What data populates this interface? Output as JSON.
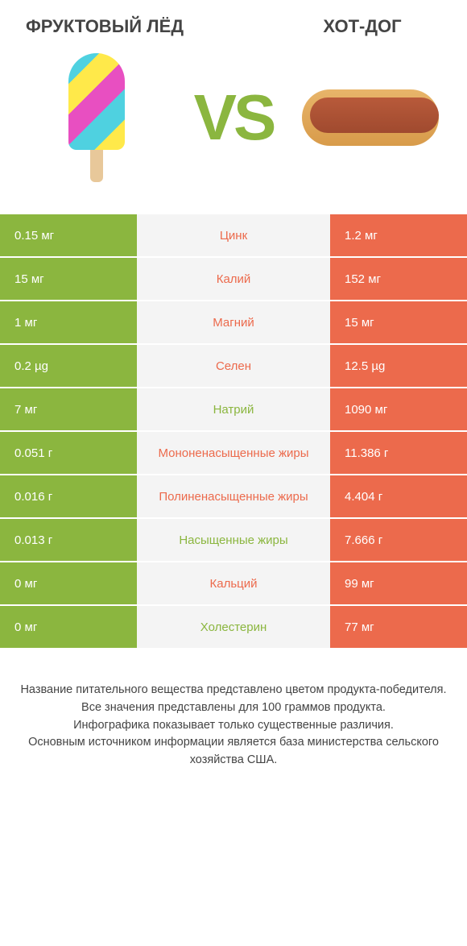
{
  "colors": {
    "left": "#8bb63f",
    "right": "#ec6a4c",
    "mid_bg": "#f4f4f4",
    "body_bg": "#ffffff",
    "text": "#444444"
  },
  "header": {
    "left_title": "ФРУКТОВЫЙ ЛЁД",
    "right_title": "ХОТ-ДОГ",
    "vs": "VS"
  },
  "rows": [
    {
      "label": "Цинк",
      "left": "0.15 мг",
      "right": "1.2 мг",
      "winner": "right"
    },
    {
      "label": "Калий",
      "left": "15 мг",
      "right": "152 мг",
      "winner": "right"
    },
    {
      "label": "Магний",
      "left": "1 мг",
      "right": "15 мг",
      "winner": "right"
    },
    {
      "label": "Селен",
      "left": "0.2 µg",
      "right": "12.5 µg",
      "winner": "right"
    },
    {
      "label": "Натрий",
      "left": "7 мг",
      "right": "1090 мг",
      "winner": "left"
    },
    {
      "label": "Мононенасыщенные жиры",
      "left": "0.051 г",
      "right": "11.386 г",
      "winner": "right"
    },
    {
      "label": "Полиненасыщенные жиры",
      "left": "0.016 г",
      "right": "4.404 г",
      "winner": "right"
    },
    {
      "label": "Насыщенные жиры",
      "left": "0.013 г",
      "right": "7.666 г",
      "winner": "left"
    },
    {
      "label": "Кальций",
      "left": "0 мг",
      "right": "99 мг",
      "winner": "right"
    },
    {
      "label": "Холестерин",
      "left": "0 мг",
      "right": "77 мг",
      "winner": "left"
    }
  ],
  "footer": {
    "line1": "Название питательного вещества представлено цветом продукта-победителя.",
    "line2": "Все значения представлены для 100 граммов продукта.",
    "line3": "Инфографика показывает только существенные различия.",
    "line4": "Основным источником информации является база министерства сельского хозяйства США."
  }
}
